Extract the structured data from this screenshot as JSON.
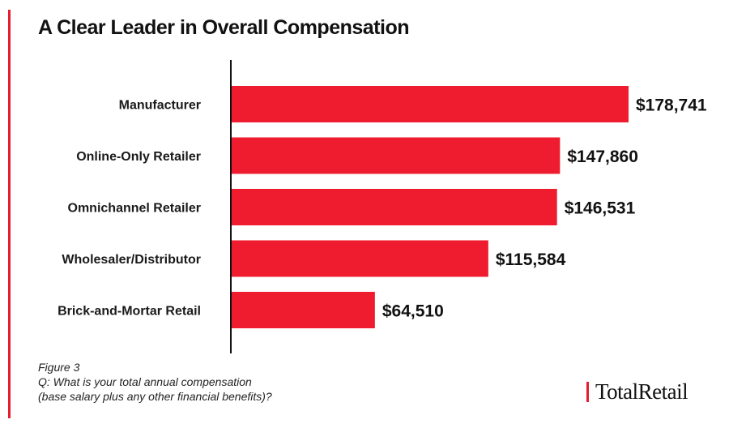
{
  "title": "A Clear Leader in Overall Compensation",
  "footnote": {
    "figure": "Figure 3",
    "question_line1": "Q: What is your total annual compensation",
    "question_line2": "(base salary plus any other financial benefits)?"
  },
  "brand": "TotalRetail",
  "colors": {
    "accent": "#e31e2d",
    "bar": "#ee1c2e",
    "text": "#111111"
  },
  "chart_data": {
    "type": "bar",
    "orientation": "horizontal",
    "categories": [
      "Manufacturer",
      "Online-Only Retailer",
      "Omnichannel Retailer",
      "Wholesaler/Distributor",
      "Brick-and-Mortar Retail"
    ],
    "values": [
      178741,
      147860,
      146531,
      115584,
      64510
    ],
    "value_labels": [
      "$178,741",
      "$147,860",
      "$146,531",
      "$115,584",
      "$64,510"
    ],
    "title": "A Clear Leader in Overall Compensation",
    "xlabel": "",
    "ylabel": "",
    "xlim": [
      0,
      178741
    ],
    "grid": false,
    "legend": "none"
  }
}
